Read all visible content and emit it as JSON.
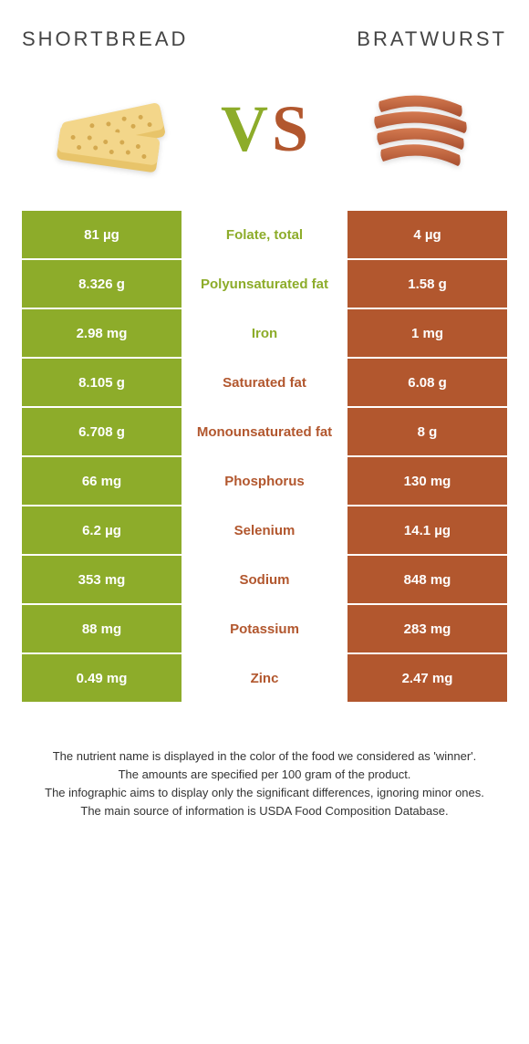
{
  "foods": {
    "left": {
      "name": "SHORTBREAD",
      "color": "#8dac2a"
    },
    "right": {
      "name": "BRATWURST",
      "color": "#b2572e"
    }
  },
  "colors": {
    "green": "#8dac2a",
    "brown": "#b2572e",
    "white": "#ffffff",
    "text": "#333333"
  },
  "rows": [
    {
      "nutrient": "Folate, total",
      "left": "81 µg",
      "right": "4 µg",
      "winner": "left"
    },
    {
      "nutrient": "Polyunsaturated fat",
      "left": "8.326 g",
      "right": "1.58 g",
      "winner": "left"
    },
    {
      "nutrient": "Iron",
      "left": "2.98 mg",
      "right": "1 mg",
      "winner": "left"
    },
    {
      "nutrient": "Saturated fat",
      "left": "8.105 g",
      "right": "6.08 g",
      "winner": "right"
    },
    {
      "nutrient": "Monounsaturated fat",
      "left": "6.708 g",
      "right": "8 g",
      "winner": "right"
    },
    {
      "nutrient": "Phosphorus",
      "left": "66 mg",
      "right": "130 mg",
      "winner": "right"
    },
    {
      "nutrient": "Selenium",
      "left": "6.2 µg",
      "right": "14.1 µg",
      "winner": "right"
    },
    {
      "nutrient": "Sodium",
      "left": "353 mg",
      "right": "848 mg",
      "winner": "right"
    },
    {
      "nutrient": "Potassium",
      "left": "88 mg",
      "right": "283 mg",
      "winner": "right"
    },
    {
      "nutrient": "Zinc",
      "left": "0.49 mg",
      "right": "2.47 mg",
      "winner": "right"
    }
  ],
  "footer": {
    "line1": "The nutrient name is displayed in the color of the food we considered as 'winner'.",
    "line2": "The amounts are specified per 100 gram of the product.",
    "line3": "The infographic aims to display only the significant differences, ignoring minor ones.",
    "line4": "The main source of information is USDA Food Composition Database."
  }
}
